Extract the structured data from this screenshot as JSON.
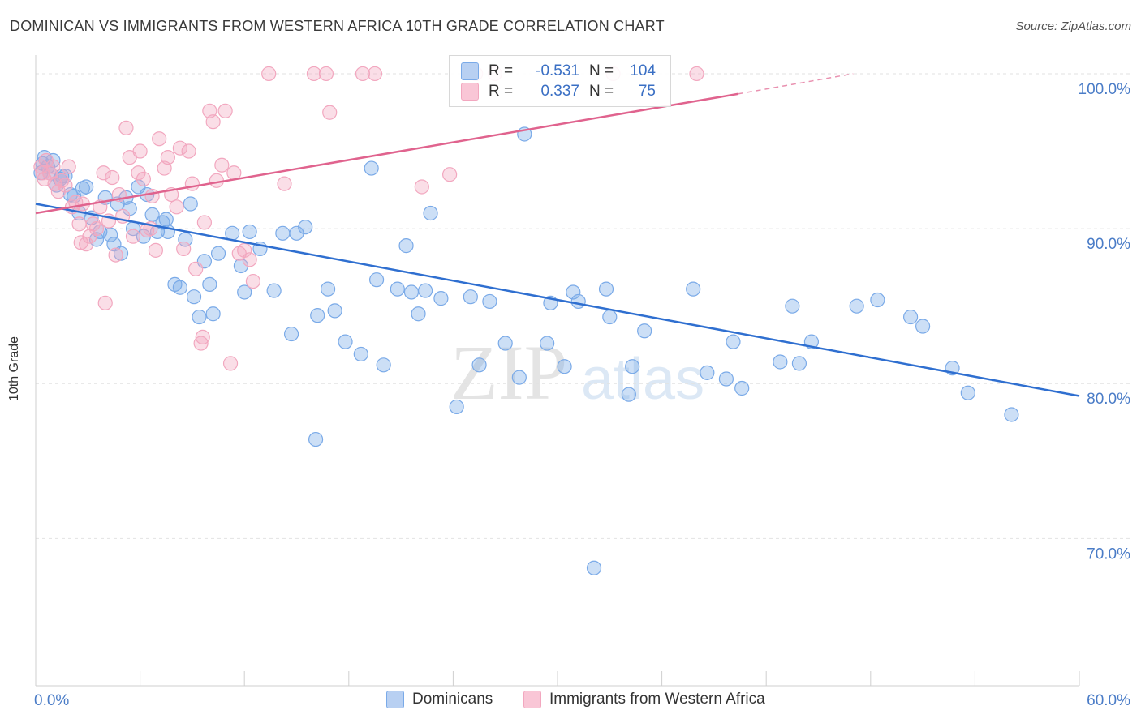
{
  "title": "DOMINICAN VS IMMIGRANTS FROM WESTERN AFRICA 10TH GRADE CORRELATION CHART",
  "source": "Source: ZipAtlas.com",
  "watermark": {
    "zip": "ZIP",
    "atlas": "atlas"
  },
  "legend": {
    "r_label": "R =",
    "n_label": "N =",
    "rows": [
      {
        "r": "-0.531",
        "n": "104"
      },
      {
        "r": "0.337",
        "n": "75"
      }
    ]
  },
  "chart_data": {
    "type": "scatter",
    "title": "DOMINICAN VS IMMIGRANTS FROM WESTERN AFRICA 10TH GRADE CORRELATION CHART",
    "xlabel": "",
    "ylabel": "10th Grade",
    "xlim": [
      0,
      60
    ],
    "ylim": [
      60.5,
      101.2
    ],
    "x_tick_labels": [
      {
        "value": 0,
        "label": "0.0%"
      },
      {
        "value": 60,
        "label": "60.0%"
      }
    ],
    "y_tick_labels": [
      {
        "value": 100,
        "label": "100.0%"
      },
      {
        "value": 90,
        "label": "90.0%"
      },
      {
        "value": 80,
        "label": "80.0%"
      },
      {
        "value": 70,
        "label": "70.0%"
      }
    ],
    "grid": true,
    "legend_position": "top-center",
    "series": [
      {
        "name": "Dominicans",
        "color": "#7aaae8",
        "line_color": "#2f6fd0",
        "trend": {
          "x": [
            0,
            60
          ],
          "y": [
            91.6,
            79.2
          ]
        },
        "points": [
          [
            0.3,
            93.6
          ],
          [
            0.4,
            94.2
          ],
          [
            0.5,
            94.6
          ],
          [
            0.7,
            94.0
          ],
          [
            0.8,
            93.6
          ],
          [
            1.0,
            94.4
          ],
          [
            1.2,
            92.8
          ],
          [
            1.4,
            93.2
          ],
          [
            1.5,
            93.4
          ],
          [
            1.7,
            93.4
          ],
          [
            2.0,
            92.2
          ],
          [
            2.2,
            92.1
          ],
          [
            2.5,
            91.0
          ],
          [
            2.7,
            92.6
          ],
          [
            2.9,
            92.7
          ],
          [
            3.2,
            90.7
          ],
          [
            3.5,
            89.3
          ],
          [
            3.7,
            89.8
          ],
          [
            4.0,
            92.0
          ],
          [
            4.3,
            89.6
          ],
          [
            4.5,
            89.0
          ],
          [
            4.7,
            91.6
          ],
          [
            4.9,
            88.4
          ],
          [
            5.2,
            92.0
          ],
          [
            5.4,
            91.3
          ],
          [
            5.6,
            90.0
          ],
          [
            5.9,
            92.7
          ],
          [
            6.2,
            89.5
          ],
          [
            6.4,
            92.2
          ],
          [
            6.7,
            90.9
          ],
          [
            7.0,
            89.8
          ],
          [
            7.3,
            90.4
          ],
          [
            7.5,
            90.6
          ],
          [
            7.6,
            89.8
          ],
          [
            8.0,
            86.4
          ],
          [
            8.3,
            86.2
          ],
          [
            8.6,
            89.3
          ],
          [
            8.9,
            91.6
          ],
          [
            9.1,
            85.6
          ],
          [
            9.4,
            84.3
          ],
          [
            9.7,
            87.9
          ],
          [
            10.0,
            86.4
          ],
          [
            10.2,
            84.5
          ],
          [
            10.5,
            88.4
          ],
          [
            11.3,
            89.7
          ],
          [
            11.8,
            87.6
          ],
          [
            12.0,
            85.9
          ],
          [
            12.3,
            89.8
          ],
          [
            12.9,
            88.7
          ],
          [
            13.7,
            86.0
          ],
          [
            14.2,
            89.7
          ],
          [
            14.7,
            83.2
          ],
          [
            15.0,
            89.7
          ],
          [
            15.5,
            90.1
          ],
          [
            16.2,
            84.4
          ],
          [
            16.8,
            86.1
          ],
          [
            17.2,
            84.7
          ],
          [
            17.8,
            82.7
          ],
          [
            18.7,
            81.9
          ],
          [
            19.3,
            93.9
          ],
          [
            19.6,
            86.7
          ],
          [
            20.0,
            81.2
          ],
          [
            20.8,
            86.1
          ],
          [
            21.3,
            88.9
          ],
          [
            21.6,
            85.9
          ],
          [
            22.0,
            84.5
          ],
          [
            22.4,
            86.0
          ],
          [
            22.7,
            91.0
          ],
          [
            23.3,
            85.5
          ],
          [
            24.2,
            78.5
          ],
          [
            25.0,
            85.6
          ],
          [
            25.5,
            81.2
          ],
          [
            26.1,
            85.3
          ],
          [
            27.0,
            82.6
          ],
          [
            27.8,
            80.4
          ],
          [
            28.1,
            96.1
          ],
          [
            29.4,
            82.6
          ],
          [
            29.6,
            85.2
          ],
          [
            30.4,
            81.1
          ],
          [
            30.9,
            85.9
          ],
          [
            31.2,
            85.3
          ],
          [
            32.8,
            86.1
          ],
          [
            33.0,
            84.3
          ],
          [
            34.1,
            79.3
          ],
          [
            34.3,
            81.1
          ],
          [
            35.0,
            83.4
          ],
          [
            37.8,
            86.1
          ],
          [
            38.6,
            80.7
          ],
          [
            39.7,
            80.3
          ],
          [
            40.1,
            82.7
          ],
          [
            40.6,
            79.7
          ],
          [
            42.8,
            81.4
          ],
          [
            43.5,
            85.0
          ],
          [
            43.9,
            81.3
          ],
          [
            44.6,
            82.7
          ],
          [
            47.2,
            85.0
          ],
          [
            48.4,
            85.4
          ],
          [
            50.3,
            84.3
          ],
          [
            51.0,
            83.7
          ],
          [
            52.7,
            81.0
          ],
          [
            53.6,
            79.4
          ],
          [
            56.1,
            78.0
          ],
          [
            32.1,
            68.1
          ],
          [
            16.1,
            76.4
          ]
        ]
      },
      {
        "name": "Immigrants from Western Africa",
        "color": "#f2a7bf",
        "line_color": "#e0638e",
        "trend": {
          "x": [
            0,
            40.4
          ],
          "y": [
            91.0,
            98.7
          ]
        },
        "trend_dashed_to": {
          "x": 47,
          "y": 100.0
        },
        "points": [
          [
            0.3,
            94.0
          ],
          [
            0.4,
            93.6
          ],
          [
            0.5,
            93.2
          ],
          [
            0.6,
            94.4
          ],
          [
            0.8,
            93.6
          ],
          [
            1.1,
            92.9
          ],
          [
            1.3,
            92.4
          ],
          [
            1.5,
            93.1
          ],
          [
            1.7,
            92.8
          ],
          [
            1.9,
            94.0
          ],
          [
            2.1,
            91.4
          ],
          [
            2.3,
            91.7
          ],
          [
            2.5,
            90.3
          ],
          [
            2.7,
            91.6
          ],
          [
            2.9,
            89.0
          ],
          [
            3.1,
            89.5
          ],
          [
            3.3,
            90.3
          ],
          [
            3.5,
            90.0
          ],
          [
            3.7,
            91.4
          ],
          [
            3.9,
            93.6
          ],
          [
            4.0,
            85.2
          ],
          [
            4.2,
            90.5
          ],
          [
            4.4,
            93.3
          ],
          [
            4.6,
            88.3
          ],
          [
            4.8,
            92.2
          ],
          [
            5.0,
            90.8
          ],
          [
            5.2,
            96.5
          ],
          [
            5.4,
            94.6
          ],
          [
            5.6,
            89.5
          ],
          [
            5.9,
            93.6
          ],
          [
            6.0,
            95.0
          ],
          [
            6.2,
            93.2
          ],
          [
            6.4,
            89.9
          ],
          [
            6.7,
            92.1
          ],
          [
            6.9,
            88.6
          ],
          [
            7.1,
            95.8
          ],
          [
            7.4,
            93.9
          ],
          [
            7.6,
            94.6
          ],
          [
            7.8,
            92.2
          ],
          [
            8.1,
            91.4
          ],
          [
            8.3,
            95.2
          ],
          [
            8.5,
            88.7
          ],
          [
            8.8,
            95.0
          ],
          [
            9.0,
            92.9
          ],
          [
            9.2,
            87.4
          ],
          [
            9.5,
            82.6
          ],
          [
            9.7,
            90.4
          ],
          [
            10.0,
            97.6
          ],
          [
            10.2,
            96.9
          ],
          [
            10.4,
            93.1
          ],
          [
            10.7,
            94.1
          ],
          [
            10.9,
            97.6
          ],
          [
            11.2,
            81.3
          ],
          [
            11.4,
            93.6
          ],
          [
            11.7,
            88.4
          ],
          [
            12.0,
            88.6
          ],
          [
            12.3,
            88.0
          ],
          [
            12.5,
            86.6
          ],
          [
            13.4,
            100.0
          ],
          [
            14.3,
            92.9
          ],
          [
            16.0,
            100.0
          ],
          [
            16.7,
            100.0
          ],
          [
            16.9,
            97.5
          ],
          [
            18.8,
            100.0
          ],
          [
            19.5,
            100.0
          ],
          [
            22.2,
            92.7
          ],
          [
            23.8,
            93.5
          ],
          [
            25.3,
            100.0
          ],
          [
            26.4,
            100.0
          ],
          [
            33.2,
            100.0
          ],
          [
            38.0,
            100.0
          ],
          [
            1.0,
            94.0
          ],
          [
            2.6,
            89.1
          ],
          [
            6.6,
            90.0
          ],
          [
            9.6,
            83.0
          ]
        ]
      }
    ]
  }
}
